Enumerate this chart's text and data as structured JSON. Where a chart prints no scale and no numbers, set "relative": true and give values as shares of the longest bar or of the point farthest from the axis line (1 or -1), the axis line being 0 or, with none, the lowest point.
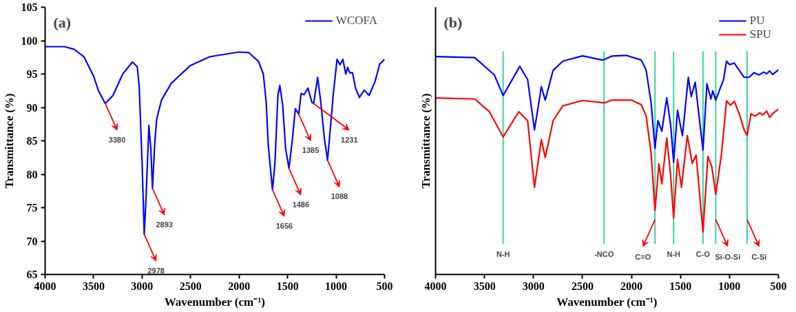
{
  "chart_data": [
    {
      "type": "line",
      "title": "(a)",
      "xlabel": "Wavenumber (cm⁻¹)",
      "ylabel": "Transmittance (%)",
      "xlim": [
        4000,
        500
      ],
      "xticks": [
        4000,
        3500,
        3000,
        2500,
        2000,
        1500,
        1000,
        500
      ],
      "ylim": [
        65,
        105
      ],
      "yticks": [
        65,
        70,
        75,
        80,
        85,
        90,
        95,
        100,
        105
      ],
      "grid": false,
      "legend": "top right",
      "series": [
        {
          "name": "WCOFA",
          "color": "#0000ff",
          "x": [
            4000,
            3800,
            3700,
            3600,
            3500,
            3450,
            3380,
            3300,
            3200,
            3100,
            3050,
            3030,
            3000,
            2978,
            2960,
            2930,
            2910,
            2893,
            2870,
            2850,
            2800,
            2700,
            2500,
            2300,
            2000,
            1900,
            1800,
            1750,
            1720,
            1700,
            1656,
            1630,
            1600,
            1580,
            1550,
            1520,
            1486,
            1450,
            1420,
            1385,
            1360,
            1330,
            1290,
            1250,
            1231,
            1190,
            1160,
            1120,
            1088,
            1060,
            1030,
            990,
            960,
            930,
            900,
            880,
            860,
            830,
            800,
            760,
            710,
            660,
            600,
            550,
            500
          ],
          "values": [
            99.1,
            99.1,
            98.7,
            97.6,
            94.7,
            92.5,
            90.6,
            91.8,
            95.0,
            96.8,
            96.1,
            93.2,
            81.7,
            71.0,
            76.2,
            87.3,
            83.8,
            77.9,
            84.5,
            88.2,
            91.1,
            93.6,
            96.3,
            97.6,
            98.3,
            98.2,
            96.9,
            95.0,
            90.7,
            84.5,
            77.7,
            81.7,
            91.8,
            93.3,
            90.3,
            83.8,
            80.9,
            85.3,
            89.8,
            89.0,
            92.1,
            91.9,
            92.9,
            90.8,
            90.6,
            94.5,
            91.1,
            85.3,
            82.1,
            86.7,
            91.8,
            97.2,
            96.4,
            97.2,
            95.0,
            96.0,
            95.2,
            95.2,
            92.9,
            91.5,
            92.6,
            91.8,
            93.8,
            96.5,
            97.2
          ]
        }
      ],
      "annotations": [
        {
          "text": "3380",
          "x": 3380,
          "y": 90.6
        },
        {
          "text": "2978",
          "x": 2978,
          "y": 71.0
        },
        {
          "text": "2893",
          "x": 2893,
          "y": 77.9
        },
        {
          "text": "1656",
          "x": 1656,
          "y": 77.7
        },
        {
          "text": "1486",
          "x": 1486,
          "y": 80.9
        },
        {
          "text": "1385",
          "x": 1385,
          "y": 89.0
        },
        {
          "text": "1231",
          "x": 1231,
          "y": 90.6
        },
        {
          "text": "1088",
          "x": 1088,
          "y": 82.1
        }
      ]
    },
    {
      "type": "line",
      "title": "(b)",
      "xlabel": "Wavenumber (cm⁻¹)",
      "ylabel": "Transmittance (%)",
      "relative": true,
      "tick_labels": "x",
      "xlim": [
        4000,
        500
      ],
      "xticks": [
        4000,
        3500,
        3000,
        2500,
        2000,
        1500,
        1000,
        500
      ],
      "grid": false,
      "legend": "top right",
      "series": [
        {
          "name": "PU",
          "color": "#0000ff",
          "x": [
            4000,
            3600,
            3400,
            3310,
            3140,
            3060,
            2990,
            2920,
            2880,
            2800,
            2700,
            2500,
            2300,
            2280,
            2200,
            2050,
            1900,
            1850,
            1800,
            1760,
            1730,
            1690,
            1640,
            1600,
            1570,
            1530,
            1480,
            1420,
            1390,
            1350,
            1270,
            1230,
            1190,
            1170,
            1140,
            1060,
            1030,
            1000,
            950,
            900,
            850,
            800,
            750,
            700,
            650,
            620,
            590,
            560,
            500
          ],
          "values": [
            0.995,
            0.99,
            0.911,
            0.817,
            0.95,
            0.89,
            0.66,
            0.857,
            0.796,
            0.932,
            0.974,
            0.998,
            0.979,
            0.981,
            0.997,
            1.0,
            0.979,
            0.932,
            0.785,
            0.576,
            0.702,
            0.654,
            0.806,
            0.681,
            0.513,
            0.749,
            0.634,
            0.9,
            0.812,
            0.877,
            0.568,
            0.871,
            0.801,
            0.838,
            0.796,
            0.89,
            0.974,
            0.958,
            0.965,
            0.932,
            0.9,
            0.9,
            0.921,
            0.911,
            0.924,
            0.916,
            0.929,
            0.913,
            0.934
          ]
        },
        {
          "name": "SPU",
          "color": "#ff0000",
          "x": [
            4000,
            3600,
            3450,
            3310,
            3150,
            3060,
            2990,
            2920,
            2880,
            2800,
            2700,
            2500,
            2300,
            2280,
            2200,
            2000,
            1900,
            1850,
            1800,
            1760,
            1720,
            1690,
            1640,
            1600,
            1570,
            1530,
            1490,
            1430,
            1380,
            1340,
            1270,
            1220,
            1180,
            1140,
            1080,
            1030,
            990,
            950,
            900,
            850,
            820,
            780,
            740,
            690,
            660,
            620,
            590,
            550,
            500
          ],
          "values": [
            0.806,
            0.801,
            0.743,
            0.628,
            0.743,
            0.702,
            0.398,
            0.616,
            0.534,
            0.702,
            0.77,
            0.794,
            0.785,
            0.783,
            0.796,
            0.796,
            0.775,
            0.723,
            0.555,
            0.293,
            0.505,
            0.414,
            0.623,
            0.45,
            0.257,
            0.526,
            0.398,
            0.634,
            0.508,
            0.545,
            0.194,
            0.539,
            0.492,
            0.366,
            0.555,
            0.793,
            0.773,
            0.791,
            0.733,
            0.66,
            0.634,
            0.733,
            0.723,
            0.738,
            0.728,
            0.746,
            0.717,
            0.738,
            0.754
          ]
        }
      ],
      "ref_lines": [
        {
          "axis": "x",
          "value": 3310,
          "label": "N-H",
          "color": "#33d6a5"
        },
        {
          "axis": "x",
          "value": 2280,
          "label": "-NCO",
          "color": "#33d6a5"
        },
        {
          "axis": "x",
          "value": 1760,
          "color": "#33d6a5"
        },
        {
          "axis": "x",
          "value": 1570,
          "label": "N-H",
          "color": "#33d6a5"
        },
        {
          "axis": "x",
          "value": 1270,
          "label": "C-O",
          "color": "#33d6a5"
        },
        {
          "axis": "x",
          "value": 1140,
          "color": "#33d6a5"
        },
        {
          "axis": "x",
          "value": 820,
          "color": "#33d6a5"
        }
      ],
      "annotations": [
        {
          "text": "C=O",
          "x": 1760,
          "y": 0.25
        },
        {
          "text": "Si-O-Si",
          "x": 1140,
          "y": 0.25
        },
        {
          "text": "C-Si",
          "x": 820,
          "y": 0.25
        }
      ]
    }
  ]
}
